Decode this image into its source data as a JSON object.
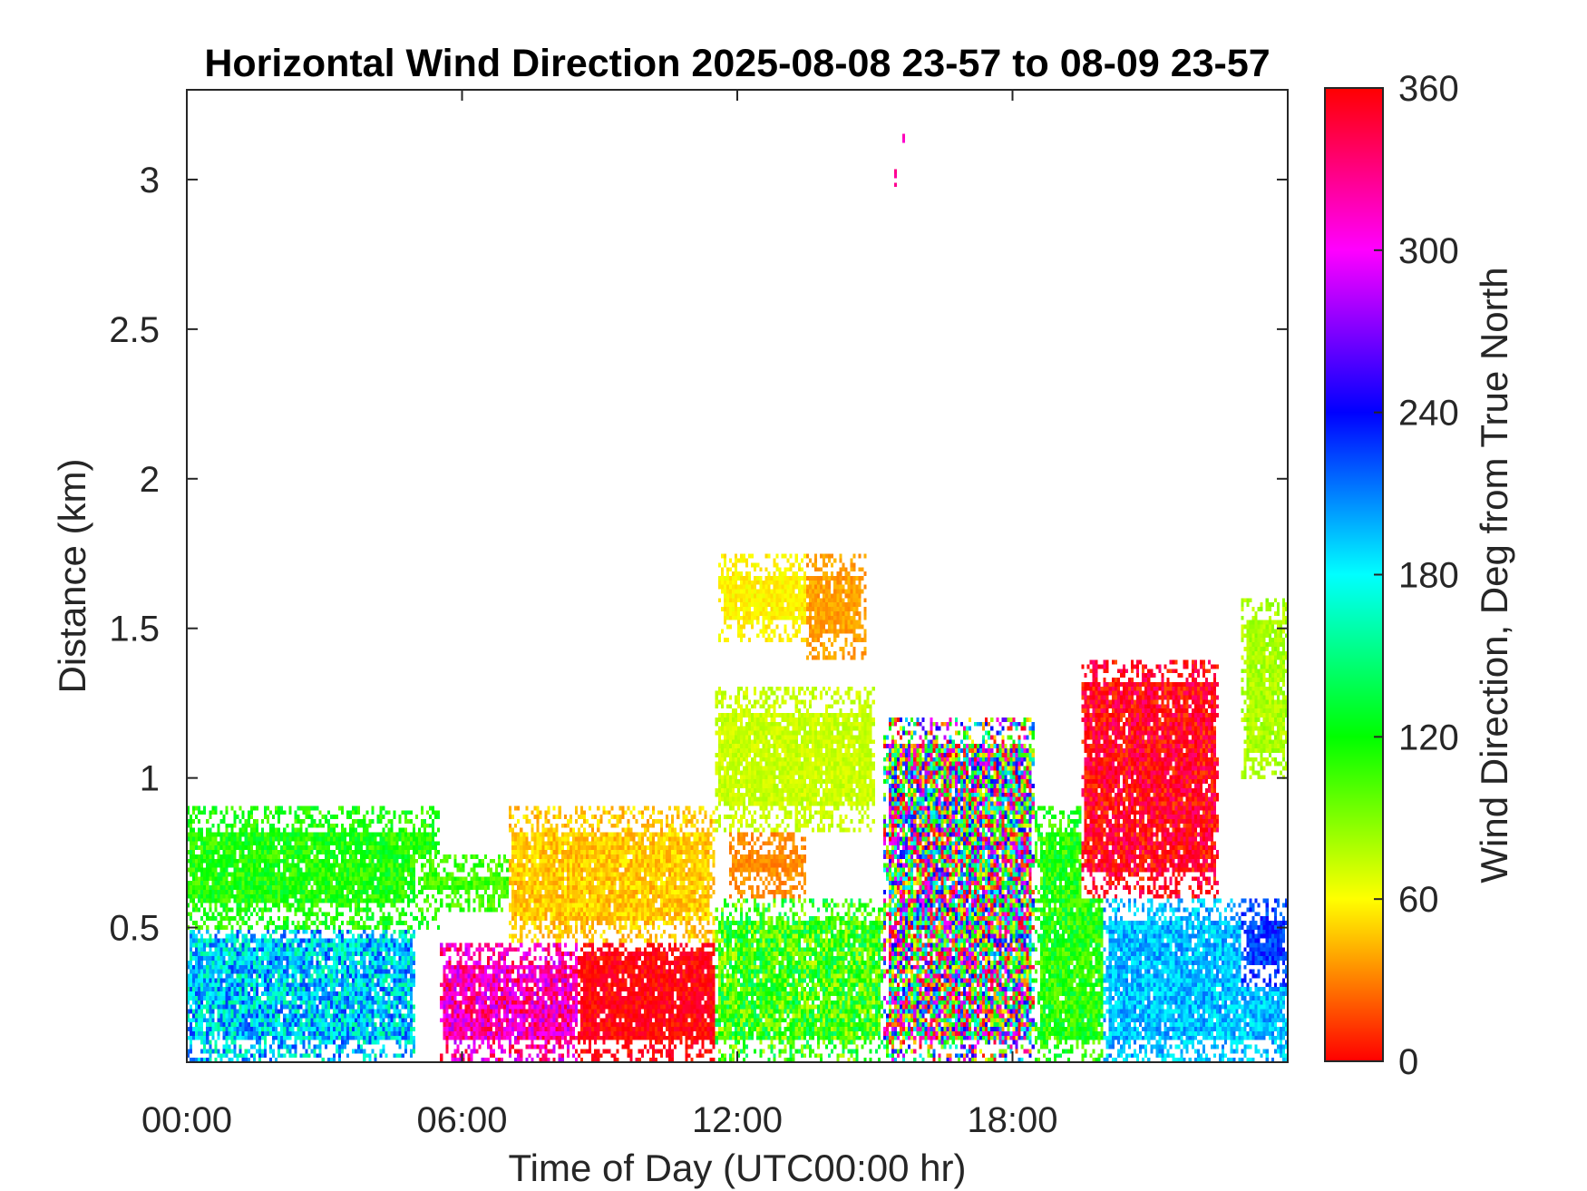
{
  "chart_data": {
    "type": "heatmap",
    "title": "Horizontal Wind Direction 2025-08-08 23-57 to 08-09 23-57",
    "xlabel": "Time of Day (UTC00:00 hr)",
    "ylabel": "Distance (km)",
    "xlim": [
      0,
      24
    ],
    "ylim": [
      0.05,
      3.3
    ],
    "x_ticks": [
      0,
      6,
      12,
      18
    ],
    "x_tick_labels": [
      "00:00",
      "06:00",
      "12:00",
      "18:00"
    ],
    "y_ticks": [
      0.5,
      1,
      1.5,
      2,
      2.5,
      3
    ],
    "y_tick_labels": [
      "0.5",
      "1",
      "1.5",
      "2",
      "2.5",
      "3"
    ],
    "colorbar": {
      "label": "Wind Direction, Deg from True North",
      "range": [
        0,
        360
      ],
      "ticks": [
        0,
        60,
        120,
        180,
        240,
        300,
        360
      ],
      "tick_labels": [
        "0",
        "60",
        "120",
        "180",
        "240",
        "300",
        "360"
      ],
      "colormap": [
        "#ff0000",
        "#ffff00",
        "#00ff00",
        "#00ffff",
        "#0000ff",
        "#ff00ff",
        "#ff0000"
      ]
    },
    "regions": [
      {
        "t0": 0.0,
        "t1": 5.0,
        "z0": 0.05,
        "z1": 0.55,
        "dir_min": 150,
        "dir_max": 230
      },
      {
        "t0": 0.0,
        "t1": 5.5,
        "z0": 0.5,
        "z1": 0.9,
        "dir_min": 95,
        "dir_max": 135
      },
      {
        "t0": 5.0,
        "t1": 7.5,
        "z0": 0.55,
        "z1": 0.75,
        "dir_min": 90,
        "dir_max": 120
      },
      {
        "t0": 5.5,
        "t1": 9.0,
        "z0": 0.05,
        "z1": 0.45,
        "dir_min": 280,
        "dir_max": 355
      },
      {
        "t0": 8.5,
        "t1": 12.0,
        "z0": 0.05,
        "z1": 0.5,
        "dir_min": 345,
        "dir_max": 372
      },
      {
        "t0": 7.0,
        "t1": 11.5,
        "z0": 0.45,
        "z1": 0.9,
        "dir_min": 35,
        "dir_max": 60
      },
      {
        "t0": 11.5,
        "t1": 15.2,
        "z0": 0.05,
        "z1": 0.6,
        "dir_min": 70,
        "dir_max": 150
      },
      {
        "t0": 11.8,
        "t1": 13.5,
        "z0": 0.6,
        "z1": 0.82,
        "dir_min": 25,
        "dir_max": 40
      },
      {
        "t0": 11.5,
        "t1": 15.0,
        "z0": 0.82,
        "z1": 1.3,
        "dir_min": 65,
        "dir_max": 80
      },
      {
        "t0": 11.6,
        "t1": 14.8,
        "z0": 1.45,
        "z1": 1.75,
        "dir_min": 50,
        "dir_max": 65
      },
      {
        "t0": 13.5,
        "t1": 14.8,
        "z0": 1.4,
        "z1": 1.75,
        "dir_min": 30,
        "dir_max": 45
      },
      {
        "t0": 15.2,
        "t1": 18.5,
        "z0": 0.05,
        "z1": 1.2,
        "dir_min": 0,
        "dir_max": 360
      },
      {
        "t0": 18.5,
        "t1": 20.5,
        "z0": 0.05,
        "z1": 0.9,
        "dir_min": 90,
        "dir_max": 140
      },
      {
        "t0": 19.5,
        "t1": 22.5,
        "z0": 0.6,
        "z1": 1.4,
        "dir_min": 330,
        "dir_max": 380
      },
      {
        "t0": 20.0,
        "t1": 24.0,
        "z0": 0.05,
        "z1": 0.6,
        "dir_min": 175,
        "dir_max": 215
      },
      {
        "t0": 23.0,
        "t1": 24.0,
        "z0": 0.3,
        "z1": 0.6,
        "dir_min": 210,
        "dir_max": 245
      },
      {
        "t0": 23.0,
        "t1": 24.0,
        "z0": 1.0,
        "z1": 1.6,
        "dir_min": 70,
        "dir_max": 90
      },
      {
        "t0": 15.45,
        "t1": 15.55,
        "z0": 2.97,
        "z1": 3.03,
        "dir_min": 320,
        "dir_max": 330
      },
      {
        "t0": 15.6,
        "t1": 15.7,
        "z0": 3.12,
        "z1": 3.18,
        "dir_min": 310,
        "dir_max": 320
      }
    ]
  }
}
